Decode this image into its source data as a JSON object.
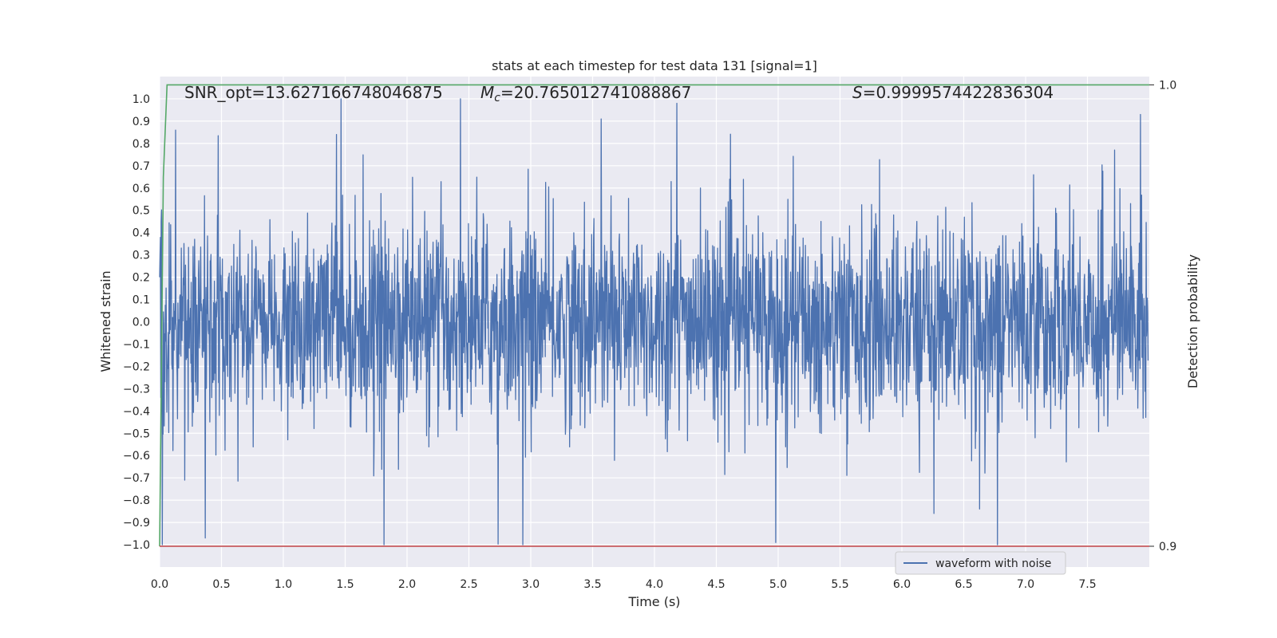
{
  "chart_data": {
    "type": "line",
    "title": "stats at each timestep for test data 131 [signal=1]",
    "xlabel": "Time (s)",
    "ylabel": "Whitened strain",
    "y2label": "Detection probability",
    "xlim": [
      0.0,
      8.0
    ],
    "ylim": [
      -1.1,
      1.1
    ],
    "y2lim": [
      0.8955,
      1.0018
    ],
    "x_ticks": [
      0.0,
      0.5,
      1.0,
      1.5,
      2.0,
      2.5,
      3.0,
      3.5,
      4.0,
      4.5,
      5.0,
      5.5,
      6.0,
      6.5,
      7.0,
      7.5
    ],
    "x_tick_labels": [
      "0.0",
      "0.5",
      "1.0",
      "1.5",
      "2.0",
      "2.5",
      "3.0",
      "3.5",
      "4.0",
      "4.5",
      "5.0",
      "5.5",
      "6.0",
      "6.5",
      "7.0",
      "7.5"
    ],
    "y_ticks": [
      1.0,
      0.9,
      0.8,
      0.7,
      0.6,
      0.5,
      0.4,
      0.3,
      0.2,
      0.1,
      0.0,
      -0.1,
      -0.2,
      -0.3,
      -0.4,
      -0.5,
      -0.6,
      -0.7,
      -0.8,
      -0.9,
      -1.0
    ],
    "y_tick_labels": [
      "1.0",
      "0.9",
      "0.8",
      "0.7",
      "0.6",
      "0.5",
      "0.4",
      "0.3",
      "0.2",
      "0.1",
      "0.0",
      "−0.1",
      "−0.2",
      "−0.3",
      "−0.4",
      "−0.5",
      "−0.6",
      "−0.7",
      "−0.8",
      "−0.9",
      "−1.0"
    ],
    "y2_ticks": [
      1.0,
      0.9
    ],
    "y2_tick_labels": [
      "1.0",
      "0.9"
    ],
    "grid": true,
    "legend": {
      "placement": "lower-right",
      "entries": [
        "waveform with noise"
      ]
    },
    "annotations": {
      "snr": "SNR_opt=13.627166748046875",
      "mc_symbol": "M",
      "mc_subscript": "c",
      "mc_value": "=20.765012741088867",
      "s_symbol": "S",
      "s_value": "=0.9999574422836304"
    },
    "series": [
      {
        "name": "waveform with noise",
        "color": "#4c72b0",
        "x_range": [
          0.0,
          7.99
        ],
        "amplitude_envelope": [
          -1.0,
          1.0
        ],
        "notable_peaks": [
          {
            "x": 0.02,
            "y": -1.0
          },
          {
            "x": 0.13,
            "y": 0.86
          },
          {
            "x": 0.37,
            "y": -0.97
          },
          {
            "x": 1.43,
            "y": 0.84
          },
          {
            "x": 3.57,
            "y": 0.91
          },
          {
            "x": 4.18,
            "y": 0.98
          },
          {
            "x": 4.98,
            "y": -0.99
          },
          {
            "x": 6.26,
            "y": -0.86
          },
          {
            "x": 7.93,
            "y": 0.93
          }
        ]
      },
      {
        "name": "",
        "color": "#55a868",
        "axis": "y2",
        "x": [
          0.0,
          0.03,
          0.06,
          0.1,
          0.2,
          8.0
        ],
        "y": [
          0.9,
          0.98,
          1.0,
          1.0,
          1.0,
          1.0
        ]
      },
      {
        "name": "",
        "color": "#c44e52",
        "axis": "y2",
        "x": [
          0.0,
          8.0
        ],
        "y": [
          0.9,
          0.9
        ]
      }
    ]
  }
}
